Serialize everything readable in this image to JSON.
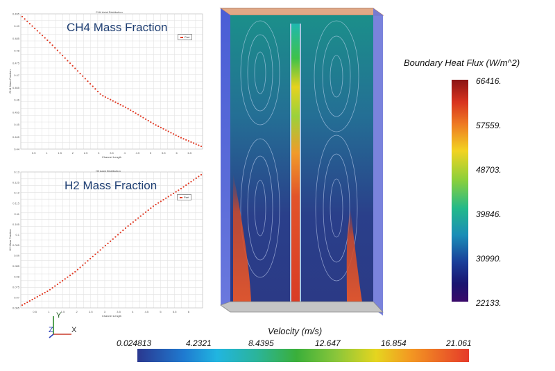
{
  "ch4_plot": {
    "heading": "CH4 Mass Fraction",
    "small_title": "CH4 Axial Distribution",
    "legend": "Part",
    "xlabel": "Channel Length",
    "ylabel": "CH4 Mass Fraction",
    "x_ticks": [
      "0.5",
      "1",
      "1.5",
      "2",
      "2.5",
      "3",
      "3.5",
      "4",
      "4.5",
      "5",
      "5.5",
      "6",
      "6.5"
    ],
    "y_ticks": [
      "0.495",
      "0.49",
      "0.485",
      "0.48",
      "0.475",
      "0.47",
      "0.465",
      "0.46",
      "0.455",
      "0.45",
      "0.445",
      "0.44"
    ]
  },
  "h2_plot": {
    "heading": "H2 Mass Fraction",
    "small_title": "H2 Axial Distribution",
    "legend": "Part",
    "xlabel": "Channel Length",
    "ylabel": "H2 Mass Fraction",
    "x_ticks": [
      "0.5",
      "1",
      "1.5",
      "2",
      "2.5",
      "3",
      "3.5",
      "4",
      "4.5",
      "5",
      "5.5",
      "6"
    ],
    "y_ticks": [
      "0.13",
      "0.125",
      "0.12",
      "0.115",
      "0.11",
      "0.105",
      "0.1",
      "0.095",
      "0.09",
      "0.085",
      "0.08",
      "0.075",
      "0.07",
      "0.065"
    ]
  },
  "chart_data": [
    {
      "type": "scatter",
      "title": "CH4 Axial Distribution",
      "xlabel": "Channel Length",
      "ylabel": "CH4 Mass Fraction",
      "series": [
        {
          "name": "Part",
          "x": [
            0,
            1.0,
            2.0,
            3.0,
            4.0,
            5.0,
            6.0,
            6.8
          ],
          "y": [
            0.497,
            0.486,
            0.474,
            0.462,
            0.456,
            0.449,
            0.443,
            0.439
          ]
        }
      ]
    },
    {
      "type": "scatter",
      "title": "H2 Axial Distribution",
      "xlabel": "Channel Length",
      "ylabel": "H2 Mass Fraction",
      "series": [
        {
          "name": "Part",
          "x": [
            0,
            1.0,
            2.0,
            3.0,
            4.0,
            5.0,
            6.0,
            6.8
          ],
          "y": [
            0.066,
            0.073,
            0.082,
            0.093,
            0.104,
            0.114,
            0.122,
            0.129
          ]
        }
      ]
    }
  ],
  "heat_flux_bar": {
    "title": "Boundary Heat Flux (W/m^2)",
    "labels": [
      "66416.",
      "57559.",
      "48703.",
      "39846.",
      "30990.",
      "22133."
    ]
  },
  "velocity_bar": {
    "title": "Velocity (m/s)",
    "labels": [
      "0.024813",
      "4.2321",
      "8.4395",
      "12.647",
      "16.854",
      "21.061"
    ]
  },
  "triad": {
    "y": "Y",
    "z": "Z",
    "x": "X"
  }
}
